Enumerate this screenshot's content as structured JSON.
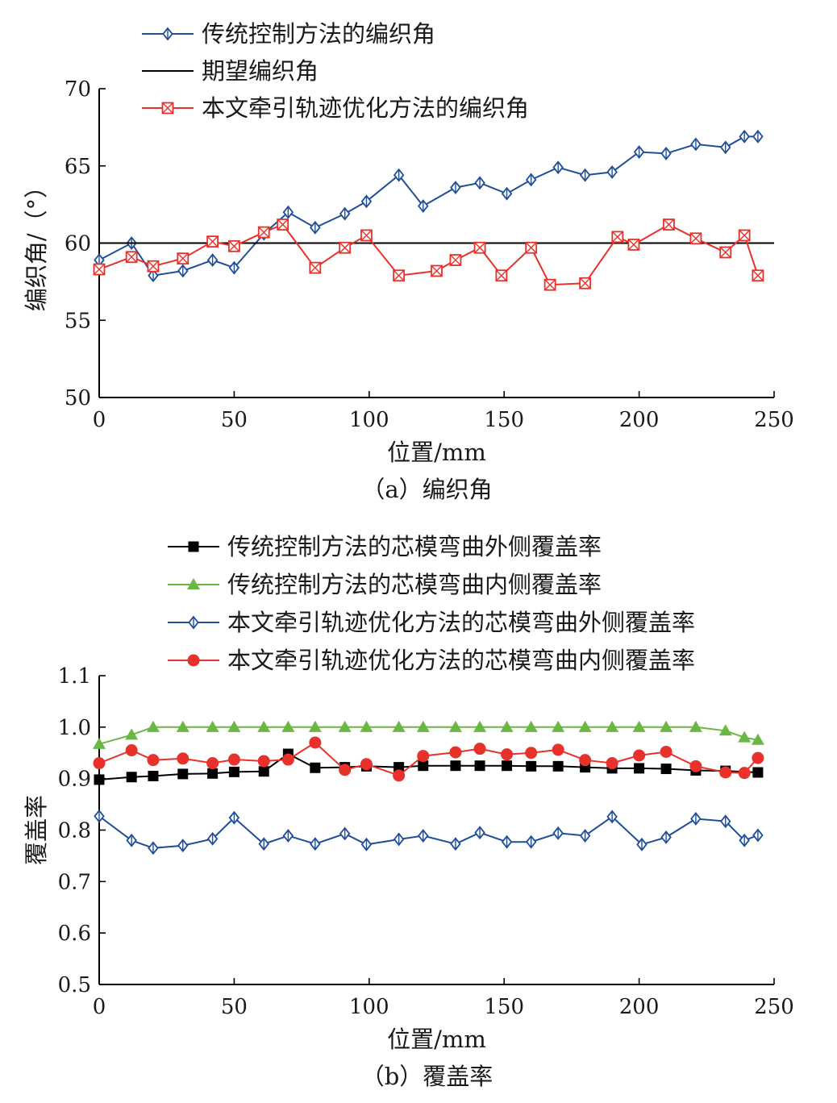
{
  "chart_data": [
    {
      "type": "line",
      "caption": "（a）编织角",
      "xlabel": "位置/mm",
      "ylabel": "编织角/（°）",
      "xlim": [
        0,
        250
      ],
      "ylim": [
        50,
        70
      ],
      "xticks": [
        0,
        50,
        100,
        150,
        200,
        250
      ],
      "yticks": [
        50,
        55,
        60,
        65,
        70
      ],
      "grid": false,
      "legend_position": "top",
      "series": [
        {
          "name": "传统控制方法的编织角",
          "color": "#1f4e9a",
          "marker": "diamond-cross",
          "x": [
            0,
            12,
            20,
            31,
            42,
            50,
            61,
            70,
            80,
            91,
            99,
            111,
            120,
            132,
            141,
            151,
            160,
            170,
            180,
            190,
            200,
            210,
            221,
            232,
            239,
            244
          ],
          "y": [
            58.9,
            60.0,
            57.9,
            58.2,
            58.9,
            58.4,
            60.6,
            62.0,
            61.0,
            61.9,
            62.7,
            64.4,
            62.4,
            63.6,
            63.9,
            63.2,
            64.1,
            64.9,
            64.4,
            64.6,
            65.9,
            65.8,
            66.4,
            66.2,
            66.9,
            66.9
          ]
        },
        {
          "name": "期望编织角",
          "color": "#000000",
          "marker": "none",
          "x": [
            0,
            250
          ],
          "y": [
            60,
            60
          ]
        },
        {
          "name": "本文牵引轨迹优化方法的编织角",
          "color": "#e8312a",
          "marker": "square-x",
          "x": [
            0,
            12,
            20,
            31,
            42,
            50,
            61,
            68,
            80,
            91,
            99,
            111,
            125,
            132,
            141,
            149,
            160,
            167,
            180,
            192,
            198,
            211,
            221,
            232,
            239,
            244
          ],
          "y": [
            58.3,
            59.1,
            58.5,
            59.0,
            60.1,
            59.8,
            60.7,
            61.2,
            58.4,
            59.7,
            60.5,
            57.9,
            58.2,
            58.9,
            59.7,
            57.9,
            59.7,
            57.3,
            57.4,
            60.4,
            59.9,
            61.2,
            60.3,
            59.4,
            60.5,
            57.9
          ]
        }
      ]
    },
    {
      "type": "line",
      "caption": "（b）覆盖率",
      "xlabel": "位置/mm",
      "ylabel": "覆盖率",
      "xlim": [
        0,
        250
      ],
      "ylim": [
        0.5,
        1.1
      ],
      "xticks": [
        0,
        50,
        100,
        150,
        200,
        250
      ],
      "yticks": [
        0.5,
        0.6,
        0.7,
        0.8,
        0.9,
        1.0,
        1.1
      ],
      "ytick_labels": [
        "0.5",
        "0.6",
        "0.7",
        "0.8",
        "0.9",
        "1.0",
        "1.1"
      ],
      "grid": false,
      "legend_position": "top",
      "series": [
        {
          "name": "传统控制方法的芯模弯曲外侧覆盖率",
          "color": "#000000",
          "marker": "filled-square",
          "x": [
            0,
            12,
            20,
            31,
            42,
            50,
            61,
            70,
            80,
            91,
            99,
            111,
            120,
            132,
            141,
            151,
            160,
            170,
            180,
            190,
            200,
            210,
            221,
            232,
            244
          ],
          "y": [
            0.898,
            0.903,
            0.905,
            0.909,
            0.91,
            0.913,
            0.914,
            0.948,
            0.921,
            0.922,
            0.924,
            0.922,
            0.925,
            0.925,
            0.925,
            0.925,
            0.924,
            0.924,
            0.922,
            0.92,
            0.92,
            0.919,
            0.916,
            0.915,
            0.912
          ]
        },
        {
          "name": "传统控制方法的芯模弯曲内侧覆盖率",
          "color": "#6ab843",
          "marker": "filled-triangle",
          "x": [
            0,
            12,
            20,
            31,
            42,
            50,
            61,
            70,
            80,
            91,
            99,
            111,
            120,
            132,
            141,
            151,
            160,
            170,
            180,
            190,
            200,
            210,
            221,
            232,
            239,
            244
          ],
          "y": [
            0.967,
            0.985,
            1.0,
            1.0,
            1.0,
            1.0,
            1.0,
            1.0,
            1.0,
            1.0,
            1.0,
            1.0,
            1.0,
            1.0,
            1.0,
            1.0,
            1.0,
            1.0,
            1.0,
            1.0,
            1.0,
            1.0,
            1.0,
            0.993,
            0.98,
            0.975
          ]
        },
        {
          "name": "本文牵引轨迹优化方法的芯模弯曲外侧覆盖率",
          "color": "#1f4e9a",
          "marker": "diamond-cross",
          "x": [
            0,
            12,
            20,
            31,
            42,
            50,
            61,
            70,
            80,
            91,
            99,
            111,
            120,
            132,
            141,
            151,
            160,
            170,
            180,
            190,
            201,
            210,
            221,
            232,
            239,
            244
          ],
          "y": [
            0.827,
            0.78,
            0.765,
            0.77,
            0.783,
            0.824,
            0.773,
            0.789,
            0.773,
            0.793,
            0.772,
            0.782,
            0.789,
            0.773,
            0.795,
            0.777,
            0.777,
            0.794,
            0.789,
            0.826,
            0.772,
            0.786,
            0.822,
            0.817,
            0.78,
            0.79
          ]
        },
        {
          "name": "本文牵引轨迹优化方法的芯模弯曲内侧覆盖率",
          "color": "#e8312a",
          "marker": "filled-circle",
          "x": [
            0,
            12,
            20,
            31,
            42,
            50,
            61,
            70,
            80,
            91,
            99,
            111,
            120,
            132,
            141,
            151,
            160,
            170,
            180,
            190,
            200,
            210,
            221,
            232,
            239,
            244
          ],
          "y": [
            0.93,
            0.955,
            0.936,
            0.939,
            0.93,
            0.937,
            0.934,
            0.937,
            0.97,
            0.917,
            0.928,
            0.906,
            0.944,
            0.951,
            0.958,
            0.947,
            0.95,
            0.956,
            0.936,
            0.93,
            0.945,
            0.952,
            0.924,
            0.912,
            0.911,
            0.94
          ]
        }
      ]
    }
  ]
}
